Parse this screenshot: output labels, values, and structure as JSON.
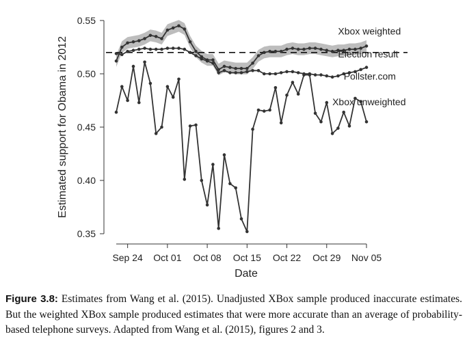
{
  "chart_data": {
    "type": "line",
    "xlabel": "Date",
    "ylabel": "Estimated support for Obama in 2012",
    "ylim": [
      0.35,
      0.55
    ],
    "yticks": [
      0.35,
      0.4,
      0.45,
      0.5,
      0.55
    ],
    "ytick_labels": [
      "0.35",
      "0.40",
      "0.45",
      "0.50",
      "0.55"
    ],
    "xlim": [
      "2012-09-20",
      "2012-11-07"
    ],
    "xticks": [
      "2012-09-24",
      "2012-10-01",
      "2012-10-08",
      "2012-10-15",
      "2012-10-22",
      "2012-10-29",
      "2012-11-05"
    ],
    "xtick_labels": [
      "Sep 24",
      "Oct 01",
      "Oct 08",
      "Oct 15",
      "Oct 22",
      "Oct 29",
      "Nov 05"
    ],
    "reference_line": {
      "name": "Election result",
      "y": 0.52,
      "style": "dashed"
    },
    "series": [
      {
        "name": "Xbox weighted",
        "style": "line-with-points-and-band",
        "color": "#333333",
        "band_color": "#bdbdbd",
        "band_halfwidth": 0.0055,
        "x": [
          "2012-09-22",
          "2012-09-23",
          "2012-09-24",
          "2012-09-25",
          "2012-09-26",
          "2012-09-27",
          "2012-09-28",
          "2012-09-29",
          "2012-09-30",
          "2012-10-01",
          "2012-10-02",
          "2012-10-03",
          "2012-10-04",
          "2012-10-05",
          "2012-10-06",
          "2012-10-07",
          "2012-10-08",
          "2012-10-09",
          "2012-10-10",
          "2012-10-11",
          "2012-10-12",
          "2012-10-13",
          "2012-10-14",
          "2012-10-15",
          "2012-10-16",
          "2012-10-17",
          "2012-10-18",
          "2012-10-19",
          "2012-10-20",
          "2012-10-21",
          "2012-10-22",
          "2012-10-23",
          "2012-10-24",
          "2012-10-25",
          "2012-10-26",
          "2012-10-27",
          "2012-10-28",
          "2012-10-29",
          "2012-10-30",
          "2012-10-31",
          "2012-11-01",
          "2012-11-02",
          "2012-11-03",
          "2012-11-04",
          "2012-11-05"
        ],
        "values": [
          0.512,
          0.525,
          0.529,
          0.53,
          0.531,
          0.533,
          0.536,
          0.535,
          0.533,
          0.541,
          0.543,
          0.545,
          0.542,
          0.53,
          0.521,
          0.516,
          0.513,
          0.513,
          0.504,
          0.507,
          0.506,
          0.505,
          0.505,
          0.505,
          0.51,
          0.517,
          0.52,
          0.521,
          0.521,
          0.521,
          0.523,
          0.524,
          0.523,
          0.523,
          0.524,
          0.524,
          0.523,
          0.522,
          0.521,
          0.522,
          0.522,
          0.523,
          0.523,
          0.524,
          0.526
        ]
      },
      {
        "name": "Pollster.com",
        "style": "line-with-points",
        "color": "#333333",
        "x": [
          "2012-09-22",
          "2012-09-23",
          "2012-09-24",
          "2012-09-25",
          "2012-09-26",
          "2012-09-27",
          "2012-09-28",
          "2012-09-29",
          "2012-09-30",
          "2012-10-01",
          "2012-10-02",
          "2012-10-03",
          "2012-10-04",
          "2012-10-05",
          "2012-10-06",
          "2012-10-07",
          "2012-10-08",
          "2012-10-09",
          "2012-10-10",
          "2012-10-11",
          "2012-10-12",
          "2012-10-13",
          "2012-10-14",
          "2012-10-15",
          "2012-10-16",
          "2012-10-17",
          "2012-10-18",
          "2012-10-19",
          "2012-10-20",
          "2012-10-21",
          "2012-10-22",
          "2012-10-23",
          "2012-10-24",
          "2012-10-25",
          "2012-10-26",
          "2012-10-27",
          "2012-10-28",
          "2012-10-29",
          "2012-10-30",
          "2012-10-31",
          "2012-11-01",
          "2012-11-02",
          "2012-11-03",
          "2012-11-04",
          "2012-11-05"
        ],
        "values": [
          0.519,
          0.518,
          0.521,
          0.522,
          0.523,
          0.524,
          0.523,
          0.523,
          0.523,
          0.524,
          0.524,
          0.524,
          0.523,
          0.52,
          0.517,
          0.514,
          0.512,
          0.51,
          0.501,
          0.503,
          0.501,
          0.501,
          0.501,
          0.502,
          0.503,
          0.503,
          0.5,
          0.5,
          0.5,
          0.501,
          0.502,
          0.502,
          0.501,
          0.5,
          0.5,
          0.499,
          0.499,
          0.498,
          0.497,
          0.498,
          0.5,
          0.501,
          0.502,
          0.504,
          0.506
        ]
      },
      {
        "name": "Xbox unweighted",
        "style": "line-with-points",
        "color": "#333333",
        "x": [
          "2012-09-22",
          "2012-09-23",
          "2012-09-24",
          "2012-09-25",
          "2012-09-26",
          "2012-09-27",
          "2012-09-28",
          "2012-09-29",
          "2012-09-30",
          "2012-10-01",
          "2012-10-02",
          "2012-10-03",
          "2012-10-04",
          "2012-10-05",
          "2012-10-06",
          "2012-10-07",
          "2012-10-08",
          "2012-10-09",
          "2012-10-10",
          "2012-10-11",
          "2012-10-12",
          "2012-10-13",
          "2012-10-14",
          "2012-10-15",
          "2012-10-16",
          "2012-10-17",
          "2012-10-18",
          "2012-10-19",
          "2012-10-20",
          "2012-10-21",
          "2012-10-22",
          "2012-10-23",
          "2012-10-24",
          "2012-10-25",
          "2012-10-26",
          "2012-10-27",
          "2012-10-28",
          "2012-10-29",
          "2012-10-30",
          "2012-10-31",
          "2012-11-01",
          "2012-11-02",
          "2012-11-03",
          "2012-11-04",
          "2012-11-05"
        ],
        "values": [
          0.464,
          0.488,
          0.475,
          0.507,
          0.473,
          0.511,
          0.491,
          0.444,
          0.45,
          0.488,
          0.478,
          0.495,
          0.401,
          0.451,
          0.452,
          0.4,
          0.377,
          0.415,
          0.355,
          0.424,
          0.397,
          0.393,
          0.364,
          0.352,
          0.448,
          0.466,
          0.465,
          0.466,
          0.487,
          0.454,
          0.48,
          0.492,
          0.481,
          0.499,
          0.499,
          0.463,
          0.455,
          0.473,
          0.444,
          0.449,
          0.464,
          0.451,
          0.477,
          0.474,
          0.455
        ]
      }
    ],
    "annotations": [
      {
        "text": "Xbox weighted",
        "x": "2012-10-31",
        "y": 0.537
      },
      {
        "text": "Election result",
        "x": "2012-10-31",
        "y": 0.5155
      },
      {
        "text": "Pollster.com",
        "x": "2012-11-01",
        "y": 0.4945
      },
      {
        "text": "Xbox unweighted",
        "x": "2012-10-30",
        "y": 0.4705
      }
    ],
    "grid": false
  },
  "caption": {
    "label": "Figure 3.8:",
    "text": " Estimates from Wang et al. (2015). Unadjusted XBox sample produced inaccurate estimates. But the weighted XBox sample produced estimates that were more accurate than an average of probability-based telephone surveys. Adapted from Wang et al. (2015), figures 2 and 3."
  }
}
